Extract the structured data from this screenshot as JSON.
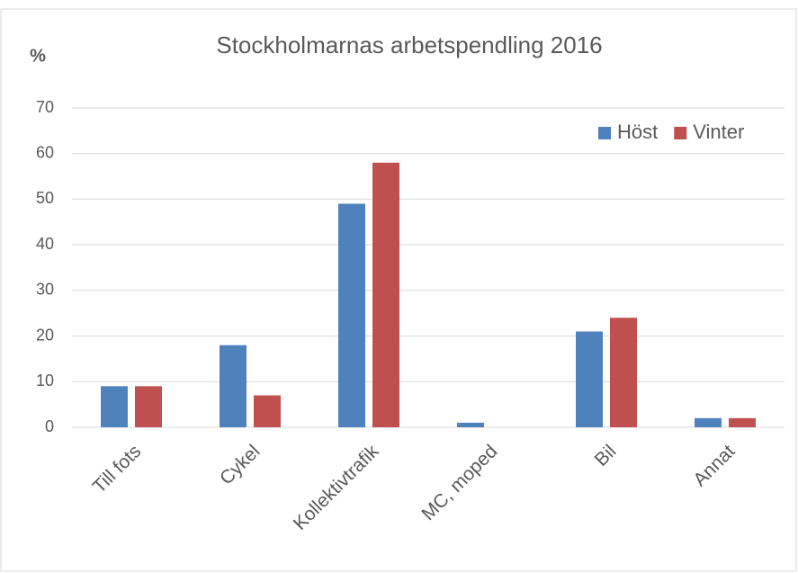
{
  "chart_data": {
    "type": "bar",
    "title": "Stockholmarnas arbetspendling 2016",
    "y_label": "%",
    "categories": [
      "Till fots",
      "Cykel",
      "Kollektivtrafik",
      "MC, moped",
      "Bil",
      "Annat"
    ],
    "series": [
      {
        "name": "Höst",
        "color": "#4f81bd",
        "values": [
          9,
          18,
          49,
          1,
          21,
          2
        ]
      },
      {
        "name": "Vinter",
        "color": "#c0504d",
        "values": [
          9,
          7,
          58,
          0,
          24,
          2
        ]
      }
    ],
    "ylim": [
      0,
      70
    ],
    "yticks": [
      0,
      10,
      20,
      30,
      40,
      50,
      60,
      70
    ],
    "grid": true,
    "legend": "upper right"
  }
}
